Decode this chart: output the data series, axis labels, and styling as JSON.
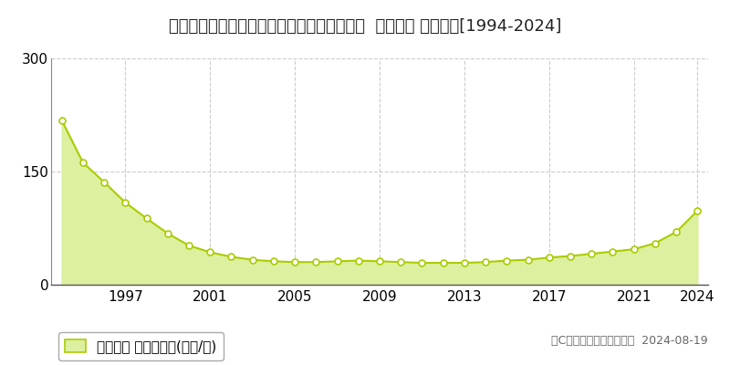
{
  "title": "北海道札幌市中央区大通東７丁目１２番１外  地価公示 地価推移[1994-2024]",
  "years": [
    1994,
    1995,
    1996,
    1997,
    1998,
    1999,
    2000,
    2001,
    2002,
    2003,
    2004,
    2005,
    2006,
    2007,
    2008,
    2009,
    2010,
    2011,
    2012,
    2013,
    2014,
    2015,
    2016,
    2017,
    2018,
    2019,
    2020,
    2021,
    2022,
    2023,
    2024
  ],
  "values": [
    218,
    162,
    136,
    109,
    88,
    68,
    52,
    43,
    37,
    33,
    31,
    30,
    30,
    31,
    32,
    31,
    30,
    29,
    29,
    29,
    30,
    32,
    33,
    36,
    38,
    41,
    44,
    47,
    55,
    70,
    98
  ],
  "line_color": "#aacc00",
  "fill_color": "#ddf0a0",
  "marker_color": "#ffffff",
  "marker_edge_color": "#aacc00",
  "grid_color": "#cccccc",
  "background_color": "#ffffff",
  "ylim": [
    0,
    300
  ],
  "yticks": [
    0,
    150,
    300
  ],
  "xticks": [
    1997,
    2001,
    2005,
    2009,
    2013,
    2017,
    2021,
    2024
  ],
  "legend_label": "地価公示 平均坪単価(万円/坪)",
  "copyright_text": "（C）土地価格ドットコム  2024-08-19",
  "title_fontsize": 13,
  "tick_fontsize": 11,
  "legend_fontsize": 11,
  "copyright_fontsize": 9
}
